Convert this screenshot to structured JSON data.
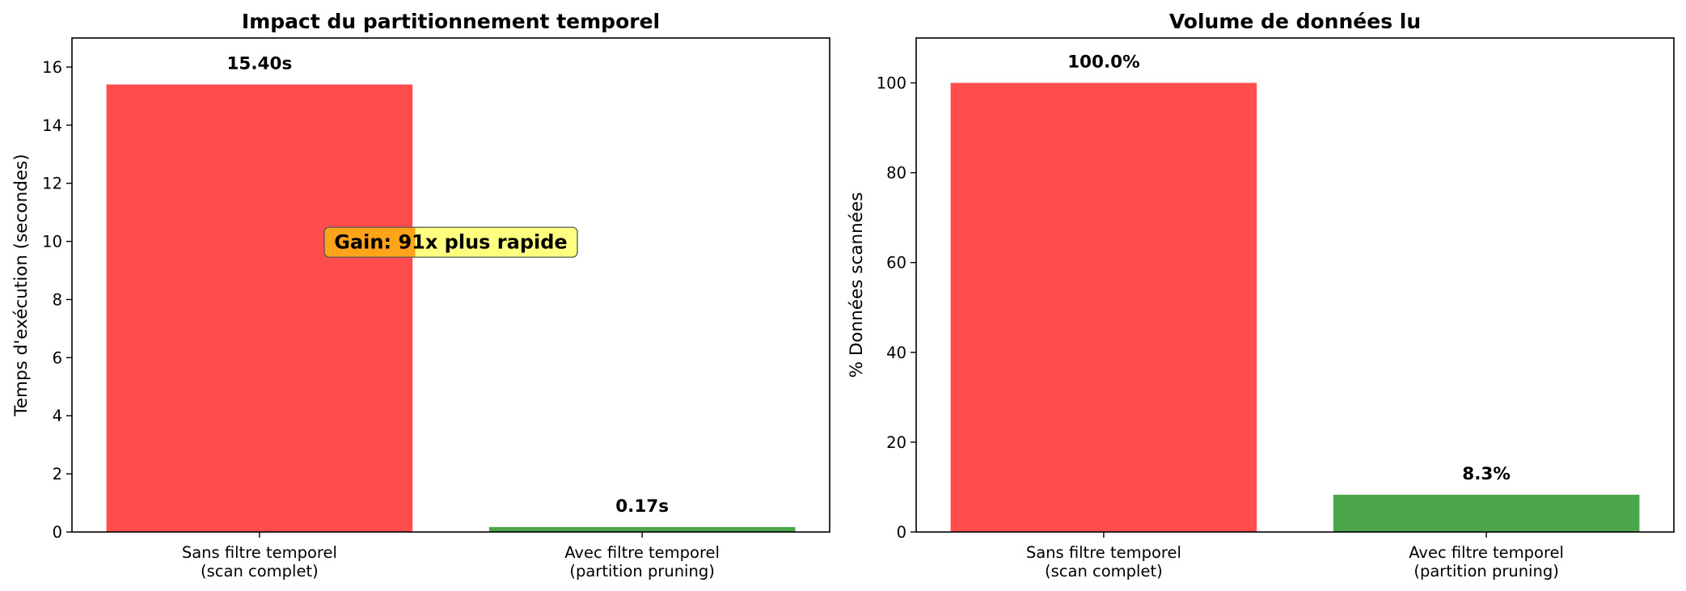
{
  "chart_data": [
    {
      "type": "bar",
      "title": "Impact du partitionnement temporel",
      "xlabel": "",
      "ylabel": "Temps d'exécution (secondes)",
      "categories": [
        [
          "Sans filtre temporel",
          "(scan complet)"
        ],
        [
          "Avec filtre temporel",
          "(partition pruning)"
        ]
      ],
      "values": [
        15.4,
        0.17
      ],
      "value_labels": [
        "15.40s",
        "0.17s"
      ],
      "colors": [
        "#ff4d4d",
        "#4ca64c"
      ],
      "ylim": [
        0,
        17
      ],
      "yticks": [
        0,
        2,
        4,
        6,
        8,
        10,
        12,
        14,
        16
      ],
      "annotation": {
        "text": "Gain: 91x plus rapide",
        "x": 0.5,
        "y": 10,
        "background": [
          "#ffa31a",
          "#ffff80"
        ]
      }
    },
    {
      "type": "bar",
      "title": "Volume de données lu",
      "xlabel": "",
      "ylabel": "% Données scannées",
      "categories": [
        [
          "Sans filtre temporel",
          "(scan complet)"
        ],
        [
          "Avec filtre temporel",
          "(partition pruning)"
        ]
      ],
      "values": [
        100.0,
        8.3
      ],
      "value_labels": [
        "100.0%",
        "8.3%"
      ],
      "colors": [
        "#ff4d4d",
        "#4ca64c"
      ],
      "ylim": [
        0,
        110
      ],
      "yticks": [
        0,
        20,
        40,
        60,
        80,
        100
      ]
    }
  ]
}
